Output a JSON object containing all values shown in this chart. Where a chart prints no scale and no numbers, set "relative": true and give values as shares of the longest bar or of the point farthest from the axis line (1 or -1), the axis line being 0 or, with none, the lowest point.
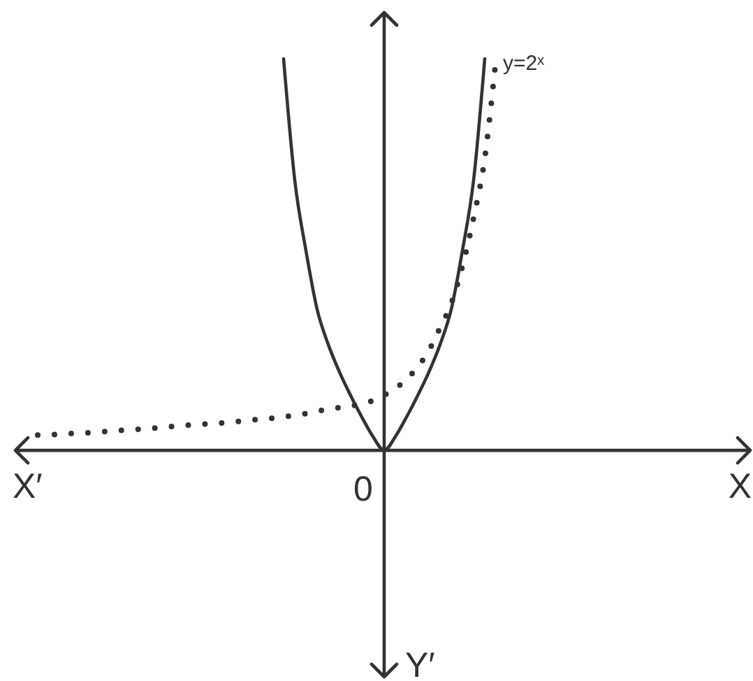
{
  "chart_data": {
    "type": "line",
    "relative": true,
    "categories": [
      null,
      null,
      null,
      null,
      null,
      null,
      null,
      null,
      null,
      null,
      null,
      null,
      null,
      null,
      null,
      null,
      null,
      null,
      null,
      null,
      null,
      null,
      null,
      null,
      null,
      null,
      null,
      null,
      null,
      null,
      null,
      null,
      null,
      null,
      null,
      null,
      null,
      null,
      null,
      null,
      null,
      null
    ],
    "annotations": [
      "X′",
      "0",
      "X",
      "Y′"
    ],
    "series": [
      {
        "color": "#333333",
        "line_style": "solid",
        "values": [
          null,
          null,
          null,
          null,
          null,
          null,
          null,
          null,
          null,
          null,
          null,
          null,
          null,
          null,
          null,
          null,
          null,
          null,
          null,
          null,
          null,
          null,
          1,
          0.69,
          0.51,
          0.36,
          0.27,
          0.2,
          0.14,
          0.085,
          0.035,
          0,
          0.035,
          0.085,
          0.14,
          0.2,
          0.27,
          0.36,
          0.51,
          0.69,
          1,
          null
        ]
      },
      {
        "name": "y=2ˣ",
        "color": "#333333",
        "line_style": "dotted",
        "values": [
          0.039,
          0.04,
          0.041,
          0.043,
          0.044,
          0.046,
          0.048,
          0.05,
          0.052,
          0.054,
          0.056,
          0.058,
          0.061,
          0.063,
          0.066,
          0.067,
          0.069,
          0.071,
          0.074,
          0.077,
          0.08,
          0.082,
          0.086,
          0.089,
          0.094,
          0.1,
          0.105,
          0.109,
          0.113,
          0.119,
          0.127,
          0.141,
          0.158,
          0.182,
          0.213,
          0.255,
          0.313,
          0.375,
          0.47,
          0.593,
          0.746,
          1
        ]
      }
    ]
  }
}
